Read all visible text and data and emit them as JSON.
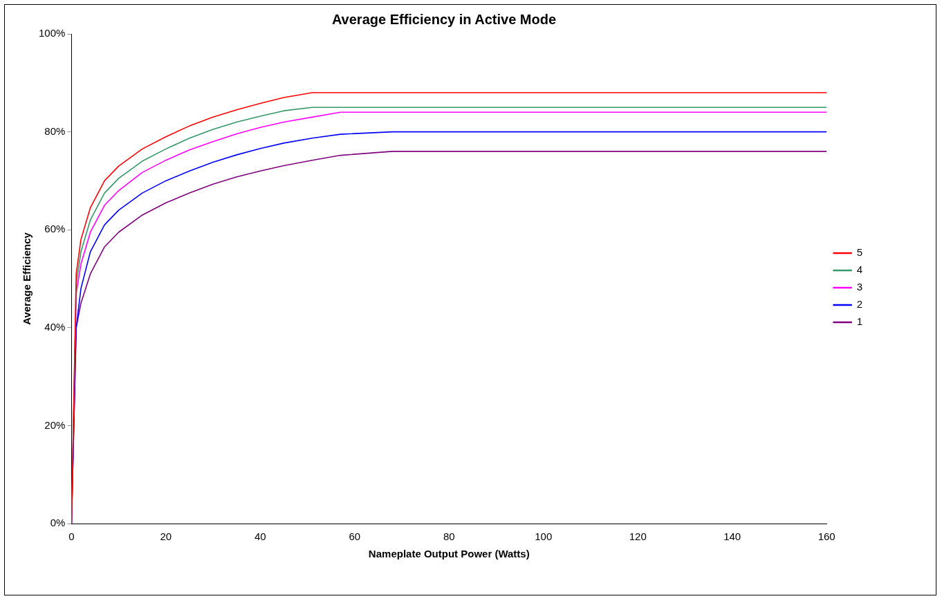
{
  "chart_data": {
    "type": "line",
    "title": "Average Efficiency in Active Mode",
    "xlabel": "Nameplate Output Power (Watts)",
    "ylabel": "Average Efficiency",
    "xlim": [
      0,
      160
    ],
    "xticks": [
      0,
      20,
      40,
      60,
      80,
      100,
      120,
      140,
      160
    ],
    "ylim": [
      0,
      100
    ],
    "yticks": [
      {
        "value": 0,
        "label": "0%"
      },
      {
        "value": 20,
        "label": "20%"
      },
      {
        "value": 40,
        "label": "40%"
      },
      {
        "value": 60,
        "label": "60%"
      },
      {
        "value": 80,
        "label": "80%"
      },
      {
        "value": 100,
        "label": "100%"
      }
    ],
    "grid": false,
    "legend": "right",
    "marker": "none",
    "line_style": "solid",
    "series": [
      {
        "name": "5",
        "color": "#ff0000",
        "x": [
          0,
          1,
          2,
          4,
          7,
          10,
          15,
          20,
          25,
          30,
          35,
          40,
          45,
          51,
          160
        ],
        "values": [
          0,
          51,
          58,
          64.5,
          70,
          73,
          76.5,
          79,
          81.2,
          83,
          84.5,
          85.8,
          87,
          88,
          88
        ]
      },
      {
        "name": "4",
        "color": "#339966",
        "x": [
          0,
          1,
          2,
          4,
          7,
          10,
          15,
          20,
          25,
          30,
          35,
          40,
          45,
          51,
          160
        ],
        "values": [
          0,
          49,
          55.5,
          62,
          67.5,
          70.5,
          74,
          76.5,
          78.7,
          80.5,
          82,
          83.2,
          84.3,
          85,
          85
        ]
      },
      {
        "name": "3",
        "color": "#ff00ff",
        "x": [
          0,
          1,
          2,
          4,
          7,
          10,
          15,
          20,
          25,
          30,
          35,
          40,
          45,
          51,
          57,
          160
        ],
        "values": [
          0,
          47,
          53,
          59.5,
          65,
          68,
          71.7,
          74.2,
          76.3,
          78,
          79.6,
          80.9,
          82,
          83,
          84,
          84
        ]
      },
      {
        "name": "2",
        "color": "#0000ff",
        "x": [
          0,
          1,
          2,
          4,
          7,
          10,
          15,
          20,
          25,
          30,
          35,
          40,
          45,
          51,
          57,
          68,
          160
        ],
        "values": [
          0,
          40,
          48,
          55.5,
          61,
          64,
          67.5,
          70,
          72,
          73.8,
          75.3,
          76.6,
          77.7,
          78.7,
          79.5,
          80,
          80
        ]
      },
      {
        "name": "1",
        "color": "#800080",
        "x": [
          0,
          1,
          2,
          4,
          7,
          10,
          15,
          20,
          25,
          30,
          35,
          40,
          45,
          51,
          57,
          68,
          160
        ],
        "values": [
          0,
          40,
          45,
          51,
          56.5,
          59.5,
          63,
          65.5,
          67.5,
          69.3,
          70.8,
          72,
          73.1,
          74.2,
          75.2,
          76,
          76
        ]
      }
    ]
  }
}
